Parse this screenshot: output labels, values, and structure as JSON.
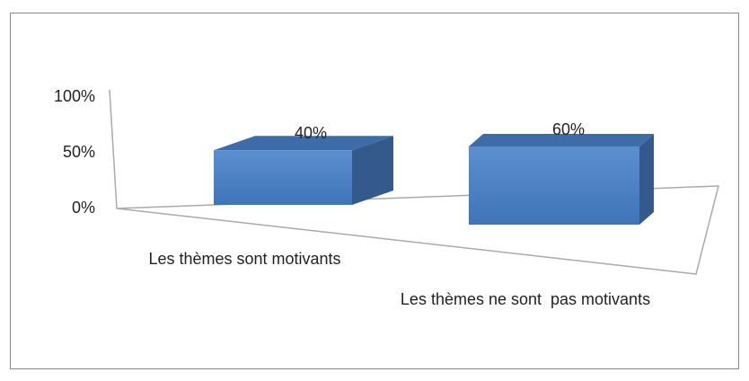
{
  "chart_data": {
    "type": "bar3d",
    "categories": [
      "Les thèmes sont motivants",
      "Les thèmes ne sont  pas motivants"
    ],
    "values": [
      40,
      60
    ],
    "value_labels": [
      "40%",
      "60%"
    ],
    "color": "#4f81bd",
    "ylim": [
      0,
      100
    ],
    "yticks": [
      {
        "value": 0,
        "label": "0%"
      },
      {
        "value": 50,
        "label": "50%"
      },
      {
        "value": 100,
        "label": "100%"
      }
    ]
  }
}
